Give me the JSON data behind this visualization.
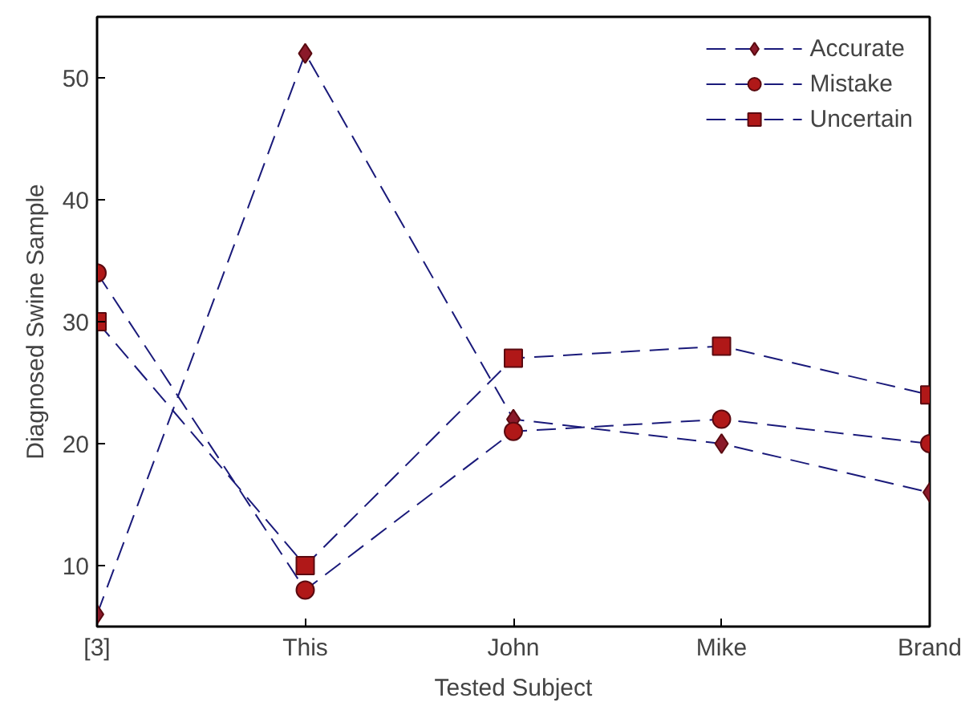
{
  "chart_data": {
    "type": "line",
    "xlabel": "Tested Subject",
    "ylabel": "Diagnosed Swine Sample",
    "categories": [
      "[3]",
      "This",
      "John",
      "Mike",
      "Brand"
    ],
    "ylim": [
      5,
      55
    ],
    "yticks": [
      10,
      20,
      30,
      40,
      50
    ],
    "grid": false,
    "legend": "top right",
    "line_style": "dashed",
    "series": [
      {
        "name": "Accurate",
        "color": "#8b1a2a",
        "marker": "diamond",
        "values": [
          6,
          52,
          22,
          20,
          16
        ]
      },
      {
        "name": "Mistake",
        "color": "#b01818",
        "marker": "circle",
        "values": [
          34,
          8,
          21,
          22,
          20
        ]
      },
      {
        "name": "Uncertain",
        "color": "#b01818",
        "marker": "square",
        "values": [
          30,
          10,
          27,
          28,
          24
        ]
      }
    ]
  }
}
